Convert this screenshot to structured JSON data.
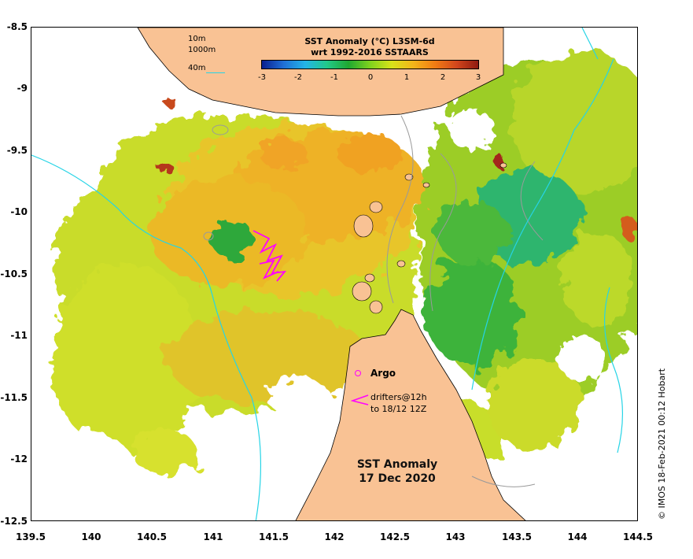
{
  "colorbar": {
    "title_line1": "SST Anomaly (°C) L3SM-6d",
    "title_line2": "wrt 1992-2016 SSTAARS",
    "min": -3,
    "max": 3,
    "ticks": [
      "-3",
      "-2",
      "-1",
      "0",
      "1",
      "2",
      "3"
    ],
    "colors": [
      "#0a1f8f",
      "#1f6fd6",
      "#23b4e8",
      "#22c98a",
      "#1fa831",
      "#7fd21e",
      "#d8e21a",
      "#f3b51a",
      "#f07c14",
      "#d2461c",
      "#8f1a10"
    ]
  },
  "depth_legend": {
    "labels": [
      "10m",
      "1000m",
      "40m"
    ]
  },
  "axes": {
    "x_ticks": [
      "139.5",
      "140",
      "140.5",
      "141",
      "141.5",
      "142",
      "142.5",
      "143",
      "143.5",
      "144",
      "144.5"
    ],
    "y_ticks": [
      "-8.5",
      "-9",
      "-9.5",
      "-10",
      "-10.5",
      "-11",
      "-11.5",
      "-12",
      "-12.5"
    ],
    "lon_range": [
      139.5,
      144.5
    ],
    "lat_range": [
      -12.5,
      -8.5
    ]
  },
  "legend": {
    "argo_label": "Argo",
    "drifters_line1": "drifters@12h",
    "drifters_line2": "to 18/12 12Z",
    "argo_color": "#ff00ff",
    "drifter_color": "#ff00ff"
  },
  "map_title": {
    "line1": "SST Anomaly",
    "line2": "17 Dec 2020"
  },
  "credit": "© IMOS 18-Feb-2021 00:12 Hobart",
  "colors": {
    "land": "#f9c294",
    "coast": "#000000",
    "isobath_40m": "#26d4e6",
    "isobath_10m": "#9a9a9a"
  }
}
